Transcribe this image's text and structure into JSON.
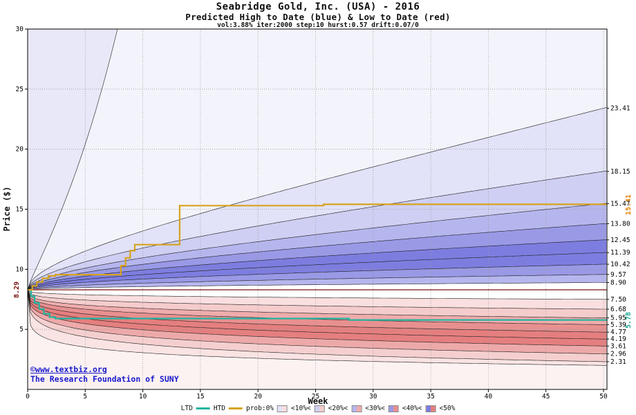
{
  "title": "Seabridge Gold, Inc. (USA) - 2016",
  "subtitle": "Predicted High to Date (blue) & Low to Date (red)",
  "params_line": "vol:3.88% iter:2000 step:10 hurst:0.57 drift:0.07/0",
  "y_axis_label": "Price ($)",
  "x_axis_label": "Week",
  "start_price_label": "8.29",
  "copyright_line1": "©www.textbiz.org",
  "copyright_line2": "The Research Foundation of SUNY",
  "chart_data": {
    "type": "area",
    "title": "Seabridge Gold, Inc. (USA) - 2016",
    "xlabel": "Week",
    "ylabel": "Price ($)",
    "x_range": [
      0,
      50
    ],
    "y_range": [
      0,
      30
    ],
    "x_ticks": [
      0,
      5,
      10,
      15,
      20,
      25,
      30,
      35,
      40,
      45,
      50
    ],
    "y_ticks": [
      5,
      10,
      15,
      20,
      25,
      30
    ],
    "start_price": 8.29,
    "high_percentile_finals": [
      23.41,
      18.15,
      15.47,
      13.8,
      12.45,
      11.39,
      10.42,
      9.57,
      8.9
    ],
    "low_percentile_finals": [
      7.5,
      6.68,
      5.95,
      5.39,
      4.77,
      4.19,
      3.61,
      2.96,
      2.31
    ],
    "high_envelope": {
      "exits_top_at_week": 8,
      "top_value": 30
    },
    "low_envelope": {
      "final_value": 2.0
    },
    "htd_final": 15.41,
    "ltd_final": 5.78,
    "htd_final_label": "15.41",
    "ltd_final_label": "5.78",
    "htd_steps": [
      [
        0,
        8.29
      ],
      [
        0.4,
        8.62
      ],
      [
        0.8,
        8.95
      ],
      [
        1.3,
        9.25
      ],
      [
        1.8,
        9.45
      ],
      [
        2.4,
        9.55
      ],
      [
        7.8,
        9.55
      ],
      [
        8.1,
        10.3
      ],
      [
        8.5,
        10.95
      ],
      [
        8.9,
        11.55
      ],
      [
        9.3,
        12.05
      ],
      [
        12.9,
        12.05
      ],
      [
        13.2,
        15.3
      ],
      [
        25.4,
        15.3
      ],
      [
        25.7,
        15.41
      ],
      [
        50.3,
        15.41
      ]
    ],
    "ltd_steps": [
      [
        0,
        8.29
      ],
      [
        0.3,
        7.75
      ],
      [
        0.6,
        7.2
      ],
      [
        1.0,
        6.7
      ],
      [
        1.4,
        6.3
      ],
      [
        1.9,
        6.02
      ],
      [
        2.4,
        5.9
      ],
      [
        27.5,
        5.9
      ],
      [
        27.9,
        5.78
      ],
      [
        50.3,
        5.78
      ]
    ],
    "band_colors_high": [
      "#e8e8f8",
      "#f3f3fc",
      "#e2e2f8",
      "#cfcff3",
      "#b6b6ee",
      "#9999e6",
      "#7d7de0",
      "#7d7de0",
      "#9999e6",
      "#b6b6ee"
    ],
    "band_colors_low": [
      "#fcf2f2",
      "#f9e3e3",
      "#f5cfcf",
      "#eda9a9",
      "#e57f7f",
      "#e57f7f",
      "#e89090",
      "#efacac",
      "#f5cccc",
      "#f9dfdf"
    ],
    "colors": {
      "htd": "#d7a31c",
      "ltd": "#22b5a0",
      "htd_label": "#e08200",
      "ltd_label": "#19a893",
      "start_line": "#7a1010",
      "grid": "#9a9a9a",
      "curve": "#1a1a1a",
      "copyright": "#1a1acc"
    }
  },
  "legend": {
    "ltd_label": "LTD",
    "htd_label": "HTD",
    "prob_labels": [
      "prob:0%",
      "<10%<",
      "<20%<",
      "<30%<",
      "<40%<",
      "<50%"
    ],
    "prob_chips": [
      [
        "#e2e2f8",
        "#f9dfdf"
      ],
      [
        "#cfcff3",
        "#f5cccc"
      ],
      [
        "#b6b6ee",
        "#efacac"
      ],
      [
        "#9999e6",
        "#e89090"
      ],
      [
        "#7d7de0",
        "#e57f7f"
      ]
    ]
  }
}
